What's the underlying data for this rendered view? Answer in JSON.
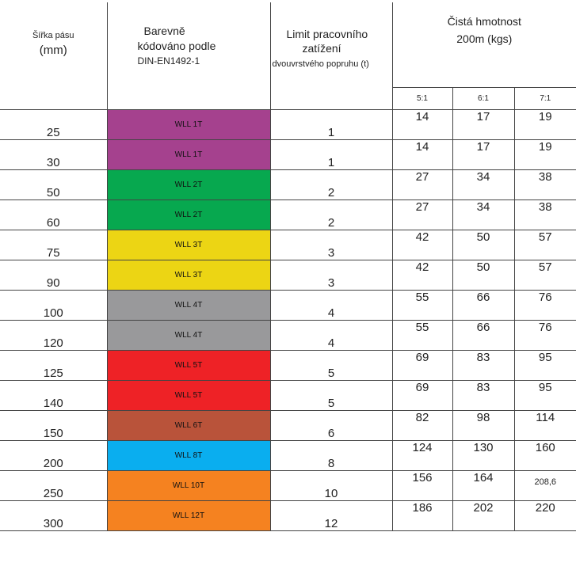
{
  "headers": {
    "width_line1": "Šířka pásu",
    "width_line2": "(mm)",
    "color_line1": "Barevně",
    "color_line2": "kódováno podle",
    "color_line3": "DIN-EN1492-1",
    "wll_line1": "Limit pracovního",
    "wll_line2": "zatížení",
    "wll_line3": "dvouvrstvého popruhu (t)",
    "net_line1": "Čistá hmotnost",
    "net_line2": "200m (kgs)",
    "ratios": [
      "5:1",
      "6:1",
      "7:1"
    ]
  },
  "rows": [
    {
      "width": "25",
      "color_label": "WLL 1T",
      "color": "#a5418e",
      "wll": "1",
      "w5": "14",
      "w6": "17",
      "w7": "19"
    },
    {
      "width": "30",
      "color_label": "WLL 1T",
      "color": "#a5418e",
      "wll": "1",
      "w5": "14",
      "w6": "17",
      "w7": "19"
    },
    {
      "width": "50",
      "color_label": "WLL 2T",
      "color": "#07a84f",
      "wll": "2",
      "w5": "27",
      "w6": "34",
      "w7": "38"
    },
    {
      "width": "60",
      "color_label": "WLL 2T",
      "color": "#07a84f",
      "wll": "2",
      "w5": "27",
      "w6": "34",
      "w7": "38"
    },
    {
      "width": "75",
      "color_label": "WLL 3T",
      "color": "#ecd514",
      "wll": "3",
      "w5": "42",
      "w6": "50",
      "w7": "57"
    },
    {
      "width": "90",
      "color_label": "WLL 3T",
      "color": "#ecd514",
      "wll": "3",
      "w5": "42",
      "w6": "50",
      "w7": "57"
    },
    {
      "width": "100",
      "color_label": "WLL 4T",
      "color": "#99999b",
      "wll": "4",
      "w5": "55",
      "w6": "66",
      "w7": "76"
    },
    {
      "width": "120",
      "color_label": "WLL 4T",
      "color": "#99999b",
      "wll": "4",
      "w5": "55",
      "w6": "66",
      "w7": "76"
    },
    {
      "width": "125",
      "color_label": "WLL 5T",
      "color": "#ee2226",
      "wll": "5",
      "w5": "69",
      "w6": "83",
      "w7": "95"
    },
    {
      "width": "140",
      "color_label": "WLL 5T",
      "color": "#ee2226",
      "wll": "5",
      "w5": "69",
      "w6": "83",
      "w7": "95"
    },
    {
      "width": "150",
      "color_label": "WLL 6T",
      "color": "#b9533a",
      "wll": "6",
      "w5": "82",
      "w6": "98",
      "w7": "114"
    },
    {
      "width": "200",
      "color_label": "WLL 8T",
      "color": "#0aaeef",
      "wll": "8",
      "w5": "124",
      "w6": "130",
      "w7": "160"
    },
    {
      "width": "250",
      "color_label": "WLL 10T",
      "color": "#f58220",
      "wll": "10",
      "w5": "156",
      "w6": "164",
      "w7": "208,6"
    },
    {
      "width": "300",
      "color_label": "WLL 12T",
      "color": "#f58220",
      "wll": "12",
      "w5": "186",
      "w6": "202",
      "w7": "220"
    }
  ]
}
